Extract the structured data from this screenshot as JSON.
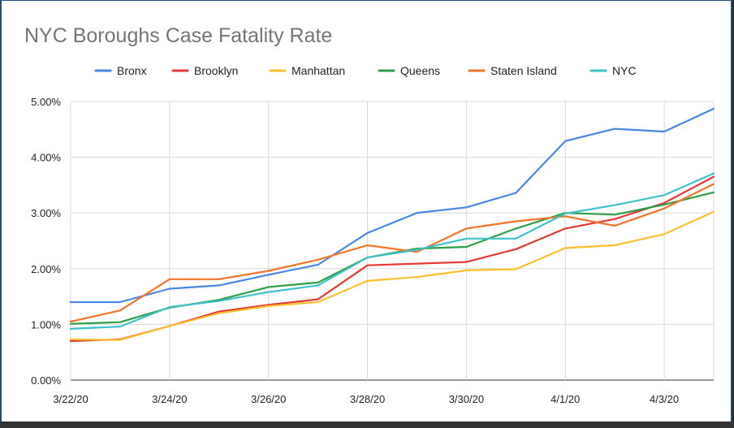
{
  "chart_data": {
    "type": "line",
    "title": "NYC Boroughs Case Fatality Rate",
    "xlabel": "",
    "ylabel": "",
    "ylim": [
      0,
      5
    ],
    "grid": true,
    "legend_position": "top",
    "x": [
      "3/22/20",
      "3/23/20",
      "3/24/20",
      "3/25/20",
      "3/26/20",
      "3/27/20",
      "3/28/20",
      "3/29/20",
      "3/30/20",
      "3/31/20",
      "4/1/20",
      "4/2/20",
      "4/3/20",
      "4/4/20"
    ],
    "x_tick_labels": [
      "3/22/20",
      "3/24/20",
      "3/26/20",
      "3/28/20",
      "3/30/20",
      "4/1/20",
      "4/3/20"
    ],
    "y_tick_labels": [
      "0.00%",
      "1.00%",
      "2.00%",
      "3.00%",
      "4.00%",
      "5.00%"
    ],
    "series": [
      {
        "name": "Bronx",
        "color": "#4a86e8",
        "values": [
          1.4,
          1.4,
          1.64,
          1.7,
          1.89,
          2.07,
          2.64,
          3.0,
          3.1,
          3.36,
          4.29,
          4.51,
          4.46,
          4.87
        ]
      },
      {
        "name": "Brooklyn",
        "color": "#e53935",
        "values": [
          0.7,
          0.73,
          0.97,
          1.23,
          1.35,
          1.45,
          2.06,
          2.09,
          2.12,
          2.35,
          2.72,
          2.89,
          3.18,
          3.65
        ]
      },
      {
        "name": "Manhattan",
        "color": "#fbc02d",
        "values": [
          0.73,
          0.72,
          0.97,
          1.2,
          1.33,
          1.4,
          1.78,
          1.85,
          1.97,
          1.99,
          2.37,
          2.42,
          2.62,
          3.02
        ]
      },
      {
        "name": "Queens",
        "color": "#2e9e47",
        "values": [
          1.01,
          1.04,
          1.3,
          1.44,
          1.67,
          1.75,
          2.2,
          2.36,
          2.39,
          2.72,
          3.0,
          2.97,
          3.15,
          3.37
        ]
      },
      {
        "name": "Staten Island",
        "color": "#f4752a",
        "values": [
          1.05,
          1.25,
          1.81,
          1.81,
          1.96,
          2.16,
          2.42,
          2.3,
          2.72,
          2.85,
          2.94,
          2.77,
          3.08,
          3.52
        ]
      },
      {
        "name": "NYC",
        "color": "#3fc1c9",
        "values": [
          0.92,
          0.96,
          1.31,
          1.42,
          1.58,
          1.7,
          2.2,
          2.34,
          2.54,
          2.54,
          2.99,
          3.14,
          3.32,
          3.71
        ]
      }
    ]
  }
}
